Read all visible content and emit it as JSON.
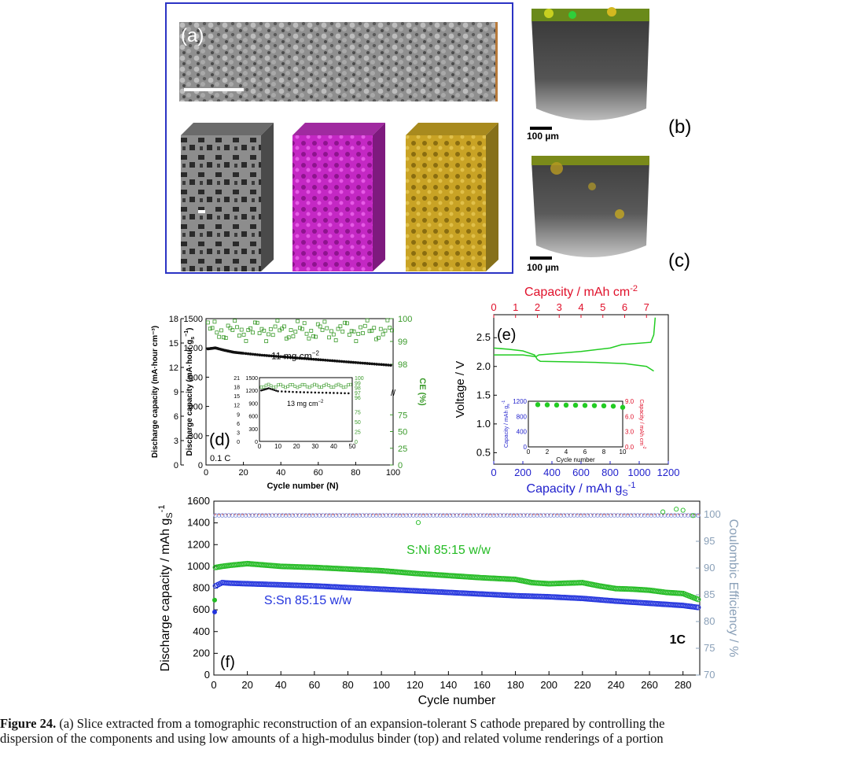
{
  "figure": {
    "panel_labels": {
      "a": "(a)",
      "b": "(b)",
      "c": "(c)",
      "d": "(d)",
      "e": "(e)",
      "f": "(f)"
    },
    "scalebar_b": "100 µm",
    "scalebar_c": "100 µm",
    "caption_label": "Figure 24.",
    "caption_line1": " (a) Slice extracted from a tomographic reconstruction of an expansion-tolerant S cathode prepared by controlling the",
    "caption_line2": "dispersion of the components and using low amounts of a high-modulus binder (top) and related volume renderings of a portion"
  },
  "panel_d": {
    "ylabel_left_outer": "Discharge capacity (mA·hour cm⁻³)",
    "ylabel_left_inner": "Discharge capacity (mA·hour g",
    "ylabel_left_inner_sub": "s",
    "ylabel_left_inner_sup": "−1",
    "ylabel_left_inner_close": ")",
    "ylabel_right": "CE (%)",
    "xlabel": "Cycle number (N)",
    "annotation_main": "11 mg cm",
    "annotation_main_sup": "−2",
    "annotation_inset": "13 mg cm",
    "annotation_inset_sup": "−2",
    "rate_label": "0.1 C",
    "colors": {
      "capacity": "#111111",
      "ce": "#3a9a2a"
    }
  },
  "panel_e": {
    "ylabel": "Voltage / V",
    "xlabel_bottom": "Capacity / mAh g",
    "xlabel_bottom_sub": "S",
    "xlabel_bottom_sup": "-1",
    "xlabel_top": "Capacity / mAh cm",
    "xlabel_top_sup": "-2",
    "inset_ylabel_left": "Capacity / mAh g",
    "inset_ylabel_left_sub": "s",
    "inset_ylabel_left_sup": "-1",
    "inset_ylabel_right": "Capacity / mAh cm",
    "inset_ylabel_right_sup": "-2",
    "inset_xlabel": "Cycle number",
    "colors": {
      "curve": "#22cc22",
      "bottom_axis": "#1f1fcc",
      "top_axis": "#e0102a"
    }
  },
  "panel_f": {
    "ylabel_left": "Discharge capacity / mAh g",
    "ylabel_left_sub": "S",
    "ylabel_left_sup": "-1",
    "ylabel_right": "Coulombic Efficiency / %",
    "xlabel": "Cycle number",
    "series_label_ni": "S:Ni 85:15 w/w",
    "series_label_sn": "S:Sn 85:15 w/w",
    "rate_label": "1C",
    "colors": {
      "ni": "#22bb22",
      "sn": "#2233dd",
      "ce_axis": "#8aa0b8"
    }
  },
  "chart_data": [
    {
      "id": "d",
      "type": "scatter",
      "xlim": [
        0,
        100
      ],
      "ylim": [
        0,
        1500
      ],
      "ylim_left_outer": [
        0,
        18
      ],
      "ylim_right": [
        98,
        100
      ],
      "right_axis_lower_ticks": [
        0,
        25,
        50,
        75
      ],
      "x_ticks": [
        0,
        20,
        40,
        60,
        80,
        100
      ],
      "y_ticks": [
        0,
        300,
        600,
        900,
        1200,
        1500
      ],
      "y_ticks_outer": [
        0,
        3,
        6,
        9,
        12,
        15,
        18
      ],
      "series": [
        {
          "name": "capacity",
          "x": [
            1,
            5,
            10,
            15,
            20,
            30,
            40,
            50,
            60,
            70,
            80,
            90,
            100
          ],
          "y": [
            1190,
            1200,
            1175,
            1155,
            1145,
            1125,
            1110,
            1095,
            1080,
            1065,
            1050,
            1035,
            1020
          ]
        },
        {
          "name": "CE",
          "y_range": [
            99.0,
            99.95
          ]
        }
      ],
      "inset": {
        "xlim": [
          0,
          50
        ],
        "ylim": [
          0,
          1500
        ],
        "ylim_outer": [
          0,
          21
        ],
        "ylim_right": [
          0,
          100
        ],
        "x_ticks": [
          0,
          10,
          20,
          30,
          40,
          50
        ],
        "y_ticks": [
          0,
          300,
          600,
          900,
          1200,
          1500
        ],
        "y_ticks_outer": [
          0,
          3,
          6,
          9,
          12,
          15,
          18,
          21
        ],
        "right_ticks": [
          0,
          25,
          50,
          75,
          96,
          97,
          98,
          99,
          100
        ],
        "capacity": {
          "x": [
            1,
            5,
            10,
            20,
            30,
            40,
            50
          ],
          "y": [
            1200,
            1250,
            1180,
            1160,
            1150,
            1140,
            1130
          ]
        }
      }
    },
    {
      "id": "e",
      "type": "line",
      "xlim": [
        0,
        1200
      ],
      "xlim_top": [
        0,
        8
      ],
      "ylim": [
        0.3,
        2.9
      ],
      "x_ticks": [
        0,
        200,
        400,
        600,
        800,
        1000,
        1200
      ],
      "x_ticks_top": [
        0,
        1,
        2,
        3,
        4,
        5,
        6,
        7
      ],
      "y_ticks": [
        0.5,
        1.0,
        1.5,
        2.0,
        2.5
      ],
      "series": [
        {
          "name": "charge",
          "x": [
            0,
            100,
            200,
            290,
            310,
            400,
            600,
            800,
            880,
            1080,
            1100,
            1110
          ],
          "y": [
            2.2,
            2.2,
            2.2,
            2.17,
            2.2,
            2.22,
            2.26,
            2.32,
            2.38,
            2.42,
            2.55,
            2.85
          ]
        },
        {
          "name": "discharge",
          "x": [
            0,
            100,
            200,
            280,
            300,
            320,
            500,
            700,
            900,
            1050,
            1100
          ],
          "y": [
            2.32,
            2.3,
            2.27,
            2.2,
            2.12,
            2.09,
            2.08,
            2.07,
            2.05,
            2.0,
            1.92
          ]
        }
      ],
      "inset": {
        "type": "scatter",
        "xlim": [
          0,
          10
        ],
        "ylim": [
          0,
          1200
        ],
        "ylim_right": [
          0,
          9
        ],
        "x_ticks": [
          0,
          2,
          4,
          6,
          8,
          10
        ],
        "y_ticks": [
          0,
          400,
          800,
          1200
        ],
        "right_ticks": [
          "0.0",
          "3.0",
          "6.0",
          "9.0"
        ],
        "x": [
          1,
          2,
          3,
          4,
          5,
          6,
          7,
          8,
          9,
          10
        ],
        "y": [
          1110,
          1105,
          1100,
          1098,
          1095,
          1090,
          1085,
          1080,
          1070,
          1040
        ]
      }
    },
    {
      "id": "f",
      "type": "scatter",
      "xlim": [
        0,
        290
      ],
      "ylim": [
        0,
        1600
      ],
      "ylim_right": [
        70,
        102.5
      ],
      "x_ticks": [
        0,
        20,
        40,
        60,
        80,
        100,
        120,
        140,
        160,
        180,
        200,
        220,
        240,
        260,
        280
      ],
      "y_ticks": [
        0,
        200,
        400,
        600,
        800,
        1000,
        1200,
        1400,
        1600
      ],
      "y_ticks_right": [
        70,
        75,
        80,
        85,
        90,
        95,
        100
      ],
      "series": [
        {
          "name": "S:Ni 85:15 w/w",
          "x": [
            0,
            1,
            5,
            10,
            20,
            40,
            60,
            80,
            100,
            120,
            140,
            160,
            180,
            190,
            200,
            210,
            220,
            230,
            240,
            250,
            260,
            270,
            280,
            290
          ],
          "y": [
            690,
            990,
            1000,
            1010,
            1025,
            1000,
            990,
            975,
            960,
            935,
            915,
            895,
            880,
            850,
            840,
            845,
            850,
            820,
            795,
            790,
            780,
            760,
            750,
            690
          ]
        },
        {
          "name": "S:Sn 85:15 w/w",
          "x": [
            0,
            1,
            5,
            10,
            20,
            40,
            60,
            80,
            100,
            120,
            140,
            160,
            180,
            200,
            220,
            240,
            260,
            280,
            290
          ],
          "y": [
            580,
            820,
            850,
            845,
            840,
            830,
            820,
            805,
            790,
            775,
            760,
            745,
            730,
            720,
            705,
            680,
            660,
            640,
            620
          ]
        },
        {
          "name": "CE",
          "y_approx": 100
        }
      ]
    }
  ]
}
